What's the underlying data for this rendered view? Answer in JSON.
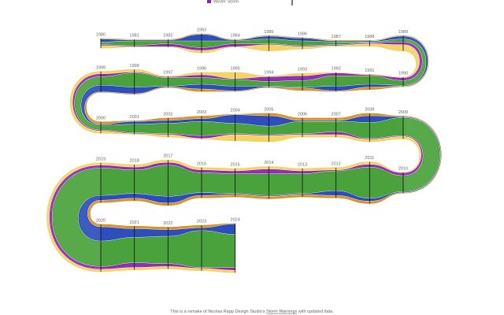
{
  "chart_data": {
    "type": "stream",
    "x": [
      1980,
      1981,
      1982,
      1983,
      1984,
      1985,
      1986,
      1987,
      1988,
      1989,
      1990,
      1991,
      1992,
      1993,
      1994,
      1995,
      1996,
      1997,
      1998,
      1999,
      2000,
      2001,
      2002,
      2003,
      2004,
      2005,
      2006,
      2007,
      2008,
      2009,
      2010,
      2011,
      2012,
      2013,
      2014,
      2015,
      2016,
      2017,
      2018,
      2019,
      2020,
      2021,
      2022,
      2023,
      2024
    ],
    "series": [
      {
        "color": "#d98b1a",
        "values": [
          0,
          0,
          0,
          0,
          0,
          0,
          0,
          0,
          0,
          0,
          0,
          1,
          0,
          1,
          0,
          0,
          1,
          0,
          0,
          0,
          1,
          0,
          1,
          1,
          0,
          1,
          1,
          1,
          1,
          0,
          0,
          1,
          1,
          1,
          1,
          1,
          1,
          1,
          1,
          1,
          1,
          1,
          1,
          1,
          0
        ]
      },
      {
        "color": "#1c3fb5",
        "values": [
          1,
          0,
          0,
          3,
          0,
          1,
          1,
          0,
          0,
          1,
          0,
          1,
          2,
          0,
          0,
          2,
          2,
          0,
          3,
          3,
          0,
          1,
          1,
          1,
          4,
          5,
          0,
          0,
          3,
          0,
          0,
          1,
          2,
          0,
          0,
          0,
          1,
          3,
          2,
          2,
          7,
          4,
          3,
          1,
          5
        ]
      },
      {
        "color": "#3a9a2a",
        "values": [
          1,
          2,
          1,
          3,
          1,
          2,
          2,
          1,
          0,
          1,
          2,
          4,
          5,
          3,
          2,
          3,
          3,
          4,
          7,
          4,
          2,
          4,
          5,
          7,
          5,
          4,
          6,
          5,
          8,
          9,
          8,
          16,
          10,
          10,
          11,
          10,
          10,
          16,
          12,
          14,
          13,
          13,
          14,
          19,
          17
        ]
      },
      {
        "name": "Winter Storm",
        "color": "#8a1fb0",
        "values": [
          0,
          0,
          1,
          1,
          1,
          0,
          0,
          0,
          0,
          1,
          1,
          0,
          1,
          2,
          2,
          0,
          1,
          0,
          0,
          1,
          0,
          0,
          0,
          1,
          0,
          0,
          0,
          1,
          0,
          0,
          1,
          1,
          0,
          1,
          2,
          1,
          1,
          1,
          1,
          1,
          1,
          2,
          1,
          0,
          1
        ]
      },
      {
        "color": "#f5cf5a",
        "values": [
          1,
          0,
          0,
          1,
          0,
          3,
          1,
          0,
          1,
          3,
          0,
          0,
          0,
          1,
          0,
          3,
          1,
          0,
          1,
          1,
          1,
          0,
          1,
          0,
          3,
          3,
          1,
          1,
          1,
          1,
          0,
          1,
          1,
          1,
          1,
          1,
          1,
          1,
          1,
          1,
          1,
          1,
          1,
          1,
          1
        ]
      }
    ],
    "note": {
      "before": "This is a remake of Nicolas Rapp Design Studio's ",
      "link": "Storm Warnings",
      "after": " with updated data."
    }
  }
}
